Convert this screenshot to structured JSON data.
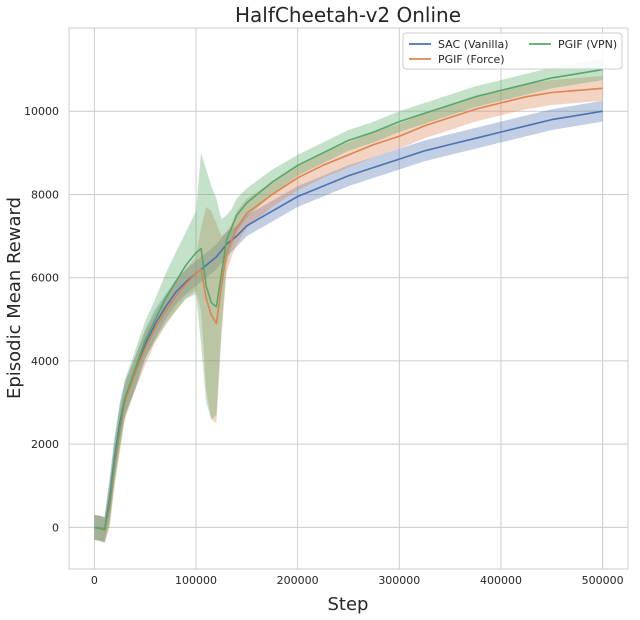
{
  "chart_data": {
    "type": "line",
    "title": "HalfCheetah-v2 Online",
    "xlabel": "Step",
    "ylabel": "Episodic Mean Reward",
    "xlim": [
      -25000,
      525000
    ],
    "ylim": [
      -1000,
      12000
    ],
    "x_ticks": [
      0,
      100000,
      200000,
      300000,
      400000,
      500000
    ],
    "x_tick_labels": [
      "0",
      "100000",
      "200000",
      "300000",
      "400000",
      "500000"
    ],
    "y_ticks": [
      0,
      2000,
      4000,
      6000,
      8000,
      10000
    ],
    "y_tick_labels": [
      "0",
      "2000",
      "4000",
      "6000",
      "8000",
      "10000"
    ],
    "grid": true,
    "legend_position": "top-right",
    "legend_columns": 2,
    "series": [
      {
        "name": "SAC (Vanilla)",
        "color": "#4c72b0",
        "x": [
          0,
          5000,
          10000,
          15000,
          20000,
          25000,
          30000,
          40000,
          50000,
          60000,
          70000,
          80000,
          90000,
          100000,
          110000,
          120000,
          130000,
          140000,
          150000,
          175000,
          200000,
          225000,
          250000,
          275000,
          300000,
          325000,
          350000,
          375000,
          400000,
          425000,
          450000,
          475000,
          500000
        ],
        "y": [
          0,
          -20,
          -50,
          700,
          1700,
          2500,
          3100,
          3700,
          4400,
          4900,
          5300,
          5650,
          5900,
          6100,
          6300,
          6500,
          6800,
          7000,
          7250,
          7600,
          7950,
          8200,
          8450,
          8650,
          8850,
          9050,
          9200,
          9350,
          9500,
          9650,
          9800,
          9900,
          10000
        ],
        "band": [
          300,
          300,
          300,
          500,
          500,
          500,
          400,
          400,
          350,
          350,
          300,
          300,
          300,
          300,
          300,
          300,
          300,
          250,
          250,
          250,
          250,
          250,
          250,
          250,
          250,
          250,
          250,
          250,
          250,
          250,
          250,
          250,
          250
        ]
      },
      {
        "name": "PGIF (Force)",
        "color": "#dd8452",
        "x": [
          0,
          5000,
          10000,
          15000,
          20000,
          25000,
          30000,
          40000,
          50000,
          60000,
          70000,
          80000,
          90000,
          100000,
          105000,
          110000,
          115000,
          120000,
          125000,
          130000,
          135000,
          140000,
          150000,
          175000,
          200000,
          225000,
          250000,
          275000,
          300000,
          325000,
          350000,
          375000,
          400000,
          425000,
          450000,
          475000,
          500000
        ],
        "y": [
          0,
          -20,
          -80,
          500,
          1500,
          2300,
          3000,
          3700,
          4300,
          4800,
          5200,
          5550,
          5850,
          6100,
          6200,
          5500,
          5100,
          4900,
          5800,
          6600,
          6900,
          7200,
          7550,
          8000,
          8400,
          8700,
          8950,
          9200,
          9400,
          9650,
          9850,
          10050,
          10200,
          10350,
          10450,
          10500,
          10550
        ],
        "band": [
          300,
          300,
          300,
          500,
          500,
          500,
          400,
          400,
          400,
          350,
          350,
          350,
          350,
          400,
          1000,
          2200,
          2500,
          2400,
          1200,
          500,
          400,
          400,
          350,
          300,
          300,
          300,
          300,
          300,
          300,
          300,
          300,
          300,
          300,
          300,
          300,
          300,
          300
        ]
      },
      {
        "name": "PGIF (VPN)",
        "color": "#55a868",
        "x": [
          0,
          5000,
          10000,
          15000,
          20000,
          25000,
          30000,
          40000,
          50000,
          60000,
          70000,
          80000,
          90000,
          100000,
          105000,
          110000,
          115000,
          120000,
          125000,
          130000,
          135000,
          140000,
          150000,
          175000,
          200000,
          225000,
          250000,
          275000,
          300000,
          325000,
          350000,
          375000,
          400000,
          425000,
          450000,
          475000,
          500000
        ],
        "y": [
          0,
          -20,
          -50,
          600,
          1600,
          2400,
          3100,
          3800,
          4500,
          5000,
          5500,
          5900,
          6300,
          6600,
          6700,
          5800,
          5400,
          5300,
          6100,
          6900,
          7200,
          7500,
          7800,
          8300,
          8700,
          9000,
          9300,
          9500,
          9750,
          9950,
          10150,
          10350,
          10500,
          10650,
          10800,
          10900,
          11000
        ],
        "band": [
          300,
          300,
          300,
          500,
          500,
          500,
          450,
          450,
          450,
          500,
          600,
          700,
          800,
          1000,
          2300,
          2800,
          2800,
          2600,
          1300,
          600,
          450,
          400,
          350,
          300,
          250,
          250,
          250,
          250,
          250,
          250,
          250,
          250,
          250,
          250,
          250,
          250,
          250
        ]
      }
    ]
  },
  "colors": {
    "background": "#ffffff",
    "grid": "#cccccc",
    "axes_edge": "#cccccc",
    "text": "#262626"
  }
}
